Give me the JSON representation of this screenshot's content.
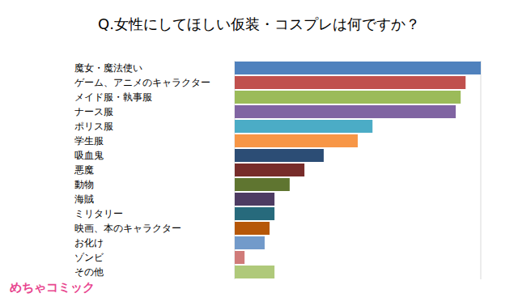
{
  "chart_data": {
    "type": "bar",
    "orientation": "horizontal",
    "title": "Q.女性にしてほしい仮装・コスプレは何ですか？",
    "annotations": [
      "めちゃコミック"
    ],
    "categories": [
      "魔女・魔法使い",
      "ゲーム、アニメのキャラクター",
      "メイド服・執事服",
      "ナース服",
      "ポリス服",
      "学生服",
      "吸血鬼",
      "悪魔",
      "動物",
      "海賊",
      "ミリタリー",
      "映画、本のキャラクター",
      "お化け",
      "ゾンビ",
      "その他"
    ],
    "values": [
      6.0,
      5.63,
      5.51,
      5.39,
      3.36,
      3.0,
      2.17,
      1.7,
      1.34,
      0.97,
      0.97,
      0.85,
      0.73,
      0.24,
      0.97
    ],
    "colors": [
      "#4f81bd",
      "#c0504d",
      "#9bbb59",
      "#8064a2",
      "#4bacc6",
      "#f79646",
      "#2c4d75",
      "#772c2a",
      "#5f7530",
      "#4d3b62",
      "#276a7c",
      "#b65708",
      "#729aca",
      "#d07b79",
      "#afc97a"
    ],
    "xlim": [
      0,
      6
    ],
    "xticks": [
      0,
      1,
      2,
      3,
      4,
      5,
      6
    ],
    "grid": true,
    "tick_labels": false
  }
}
